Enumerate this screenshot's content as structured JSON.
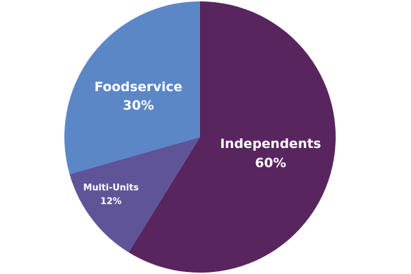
{
  "chart_data": {
    "type": "pie",
    "title": "",
    "start_angle_deg": 0,
    "direction": "clockwise",
    "slices": [
      {
        "name": "Independents",
        "value": 60,
        "value_label": "60%",
        "color": "#58255F"
      },
      {
        "name": "Multi-Units",
        "value": 12,
        "value_label": "12%",
        "color": "#605499"
      },
      {
        "name": "Foodservice",
        "value": 30,
        "value_label": "30%",
        "color": "#5B87C7"
      }
    ]
  }
}
